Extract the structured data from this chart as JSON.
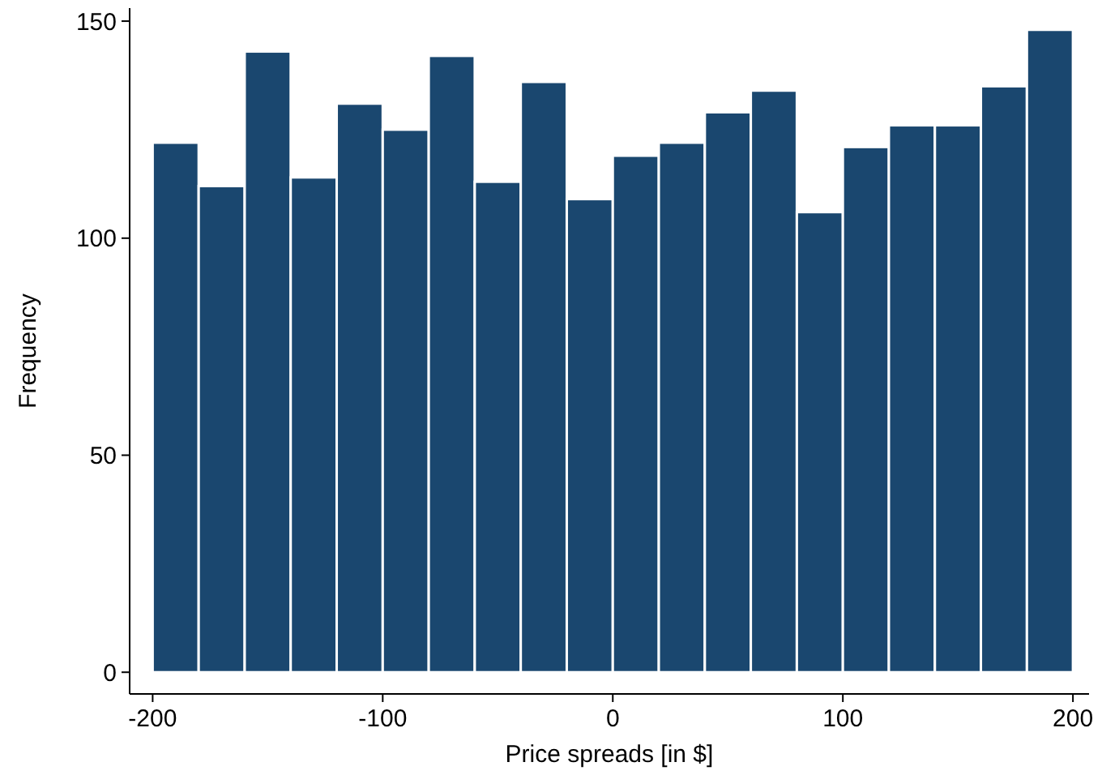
{
  "chart_data": {
    "type": "histogram",
    "xlabel": "Price spreads [in $]",
    "ylabel": "Frequency",
    "bins": [
      -200,
      -180,
      -160,
      -140,
      -120,
      -100,
      -80,
      -60,
      -40,
      -20,
      0,
      20,
      40,
      60,
      80,
      100,
      120,
      140,
      160,
      180,
      200
    ],
    "values": [
      122,
      112,
      143,
      114,
      131,
      125,
      142,
      113,
      136,
      109,
      119,
      122,
      129,
      134,
      106,
      121,
      126,
      126,
      135,
      148
    ],
    "color": "#1a476f",
    "xlim": [
      -210,
      207
    ],
    "xticks": [
      -200,
      -100,
      0,
      100,
      200
    ],
    "ylim": [
      -5,
      153
    ],
    "yticks": [
      0,
      50,
      100,
      150
    ],
    "grid": false
  }
}
